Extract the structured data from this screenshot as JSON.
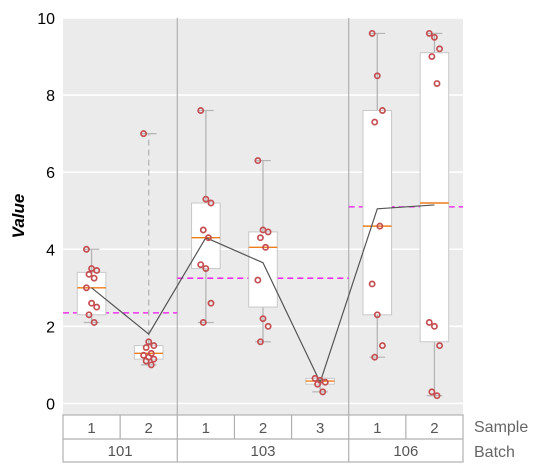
{
  "chart_data": {
    "type": "boxplot",
    "ylabel": "Value",
    "ylim": [
      -0.3,
      10
    ],
    "yticks": [
      0,
      2,
      4,
      6,
      8,
      10
    ],
    "row_labels": [
      "Sample",
      "Batch"
    ],
    "batches": [
      {
        "name": "101",
        "mean": 2.35,
        "samples": [
          "1",
          "2"
        ]
      },
      {
        "name": "103",
        "mean": 3.25,
        "samples": [
          "1",
          "2",
          "3"
        ]
      },
      {
        "name": "106",
        "mean": 5.1,
        "samples": [
          "1",
          "2"
        ]
      }
    ],
    "groups": [
      {
        "batch": "101",
        "sample": "1",
        "q1": 2.3,
        "median": 3.0,
        "q3": 3.4,
        "whisker_low": 2.1,
        "whisker_high": 4.0,
        "points": [
          4.0,
          3.5,
          3.45,
          3.35,
          3.25,
          3.0,
          2.6,
          2.5,
          2.3,
          2.1
        ]
      },
      {
        "batch": "101",
        "sample": "2",
        "q1": 1.15,
        "median": 1.3,
        "q3": 1.5,
        "whisker_low": 1.0,
        "whisker_high": 7.0,
        "points": [
          7.0,
          1.6,
          1.5,
          1.45,
          1.3,
          1.25,
          1.2,
          1.15,
          1.1,
          1.0
        ]
      },
      {
        "batch": "103",
        "sample": "1",
        "q1": 3.5,
        "median": 4.3,
        "q3": 5.2,
        "whisker_low": 2.1,
        "whisker_high": 7.6,
        "points": [
          7.6,
          5.3,
          5.2,
          4.5,
          4.3,
          3.6,
          3.5,
          2.6,
          2.1
        ]
      },
      {
        "batch": "103",
        "sample": "2",
        "q1": 2.5,
        "median": 4.05,
        "q3": 4.45,
        "whisker_low": 1.6,
        "whisker_high": 6.3,
        "points": [
          6.3,
          4.5,
          4.45,
          4.3,
          4.05,
          3.2,
          2.2,
          2.0,
          1.6
        ]
      },
      {
        "batch": "103",
        "sample": "3",
        "q1": 0.5,
        "median": 0.58,
        "q3": 0.65,
        "whisker_low": 0.3,
        "whisker_high": 0.65,
        "points": [
          0.65,
          0.6,
          0.55,
          0.5,
          0.3
        ]
      },
      {
        "batch": "106",
        "sample": "1",
        "q1": 2.3,
        "median": 4.6,
        "q3": 7.6,
        "whisker_low": 1.2,
        "whisker_high": 9.6,
        "points": [
          9.6,
          8.5,
          7.6,
          7.3,
          4.6,
          3.1,
          2.3,
          1.5,
          1.2
        ]
      },
      {
        "batch": "106",
        "sample": "2",
        "q1": 1.6,
        "median": 5.2,
        "q3": 9.1,
        "whisker_low": 0.2,
        "whisker_high": 9.6,
        "points": [
          9.6,
          9.5,
          9.2,
          9.0,
          8.3,
          2.1,
          2.0,
          1.5,
          0.3,
          0.2
        ]
      }
    ],
    "mean_line": [
      3.0,
      1.8,
      4.3,
      3.65,
      0.55,
      5.05,
      5.15
    ],
    "colors": {
      "plot_bg": "#ebebeb",
      "grid": "#ffffff",
      "box_fill": "#ffffff",
      "box_edge": "#c8c8c8",
      "whisker": "#b4b4b4",
      "median": "#ee7d1c",
      "points": "#c44e52",
      "mean_line": "#555555",
      "batch_mean": "#ee11ee",
      "separator": "#b0b0b0"
    }
  }
}
